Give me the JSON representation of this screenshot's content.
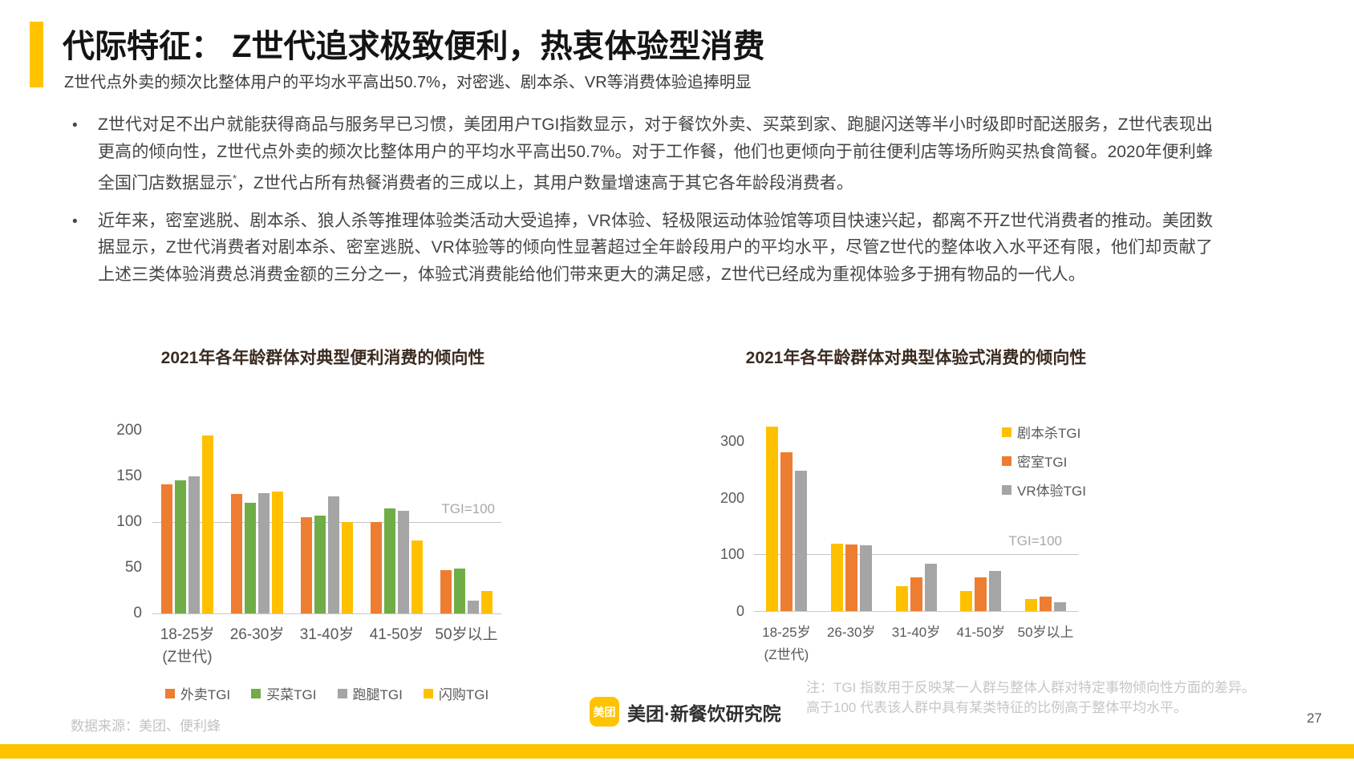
{
  "header": {
    "title": "代际特征： Z世代追求极致便利，热衷体验型消费",
    "subtitle": "Z世代点外卖的频次比整体用户的平均水平高出50.7%，对密逃、剧本杀、VR等消费体验追捧明显"
  },
  "bullets": [
    {
      "part1": "Z世代对足不出户就能获得商品与服务早已习惯，美团用户TGI指数显示，对于餐饮外卖、买菜到家、跑腿闪送等半小时级即时配送服务，Z世代表现出更高的倾向性，Z世代点外卖的频次比整体用户的平均水平高出50.7%。对于工作餐，他们也更倾向于前往便利店等场所购买热食简餐。2020年便利蜂全国门店数据显示",
      "sup": "*",
      "part2": "，Z世代占所有热餐消费者的三成以上，其用户数量增速高于其它各年龄段消费者。"
    },
    {
      "part1": "近年来，密室逃脱、剧本杀、狼人杀等推理体验类活动大受追捧，VR体验、轻极限运动体验馆等项目快速兴起，都离不开Z世代消费者的推动。美团数据显示，Z世代消费者对剧本杀、密室逃脱、VR体验等的倾向性显著超过全年龄段用户的平均水平，尽管Z世代的整体收入水平还有限，他们却贡献了上述三类体验消费总消费金额的三分之一，体验式消费能给他们带来更大的满足感，Z世代已经成为重视体验多于拥有物品的一代人。",
      "sup": "",
      "part2": ""
    }
  ],
  "chart_data": [
    {
      "type": "bar",
      "title": "2021年各年龄群体对典型便利消费的倾向性",
      "categories": [
        {
          "label": "18-25岁",
          "sub": "(Z世代)"
        },
        {
          "label": "26-30岁",
          "sub": ""
        },
        {
          "label": "31-40岁",
          "sub": ""
        },
        {
          "label": "41-50岁",
          "sub": ""
        },
        {
          "label": "50岁以上",
          "sub": ""
        }
      ],
      "series": [
        {
          "name": "外卖TGI",
          "color": "#ED7D31",
          "values": [
            141,
            131,
            105,
            100,
            47
          ]
        },
        {
          "name": "买菜TGI",
          "color": "#70AD47",
          "values": [
            146,
            121,
            107,
            115,
            49
          ]
        },
        {
          "name": "跑腿TGI",
          "color": "#A5A5A5",
          "values": [
            150,
            132,
            128,
            112,
            14
          ]
        },
        {
          "name": "闪购TGI",
          "color": "#FFC000",
          "values": [
            195,
            133,
            100,
            80,
            25
          ]
        }
      ],
      "ylim": [
        0,
        200
      ],
      "yticks": [
        0,
        50,
        100,
        150,
        200
      ],
      "reference_line": {
        "value": 100,
        "label": "TGI=100"
      },
      "grid": false,
      "legend_position": "bottom"
    },
    {
      "type": "bar",
      "title": "2021年各年龄群体对典型体验式消费的倾向性",
      "categories": [
        {
          "label": "18-25岁",
          "sub": "(Z世代)"
        },
        {
          "label": "26-30岁",
          "sub": ""
        },
        {
          "label": "31-40岁",
          "sub": ""
        },
        {
          "label": "41-50岁",
          "sub": ""
        },
        {
          "label": "50岁以上",
          "sub": ""
        }
      ],
      "series": [
        {
          "name": "剧本杀TGI",
          "color": "#FFC000",
          "values": [
            325,
            119,
            44,
            35,
            21
          ]
        },
        {
          "name": "密室TGI",
          "color": "#ED7D31",
          "values": [
            280,
            117,
            60,
            60,
            25
          ]
        },
        {
          "name": "VR体验TGI",
          "color": "#A5A5A5",
          "values": [
            248,
            116,
            84,
            71,
            15
          ]
        }
      ],
      "ylim": [
        0,
        300
      ],
      "yticks": [
        0,
        100,
        200,
        300
      ],
      "reference_line": {
        "value": 100,
        "label": "TGI=100"
      },
      "grid": false,
      "legend_position": "top-right"
    }
  ],
  "footer": {
    "source": "数据来源：美团、便利蜂",
    "note_line1": "注：TGI 指数用于反映某一人群与整体人群对特定事物倾向性方面的差异。",
    "note_line2": "高于100 代表该人群中具有某类特征的比例高于整体平均水平。",
    "logo_badge": "美团",
    "logo_text": "美团·新餐饮研究院",
    "page_number": "27"
  },
  "colors": {
    "accent": "#FFC300",
    "orange": "#ED7D31",
    "green": "#70AD47",
    "gray": "#A5A5A5",
    "yellow": "#FFC000"
  }
}
